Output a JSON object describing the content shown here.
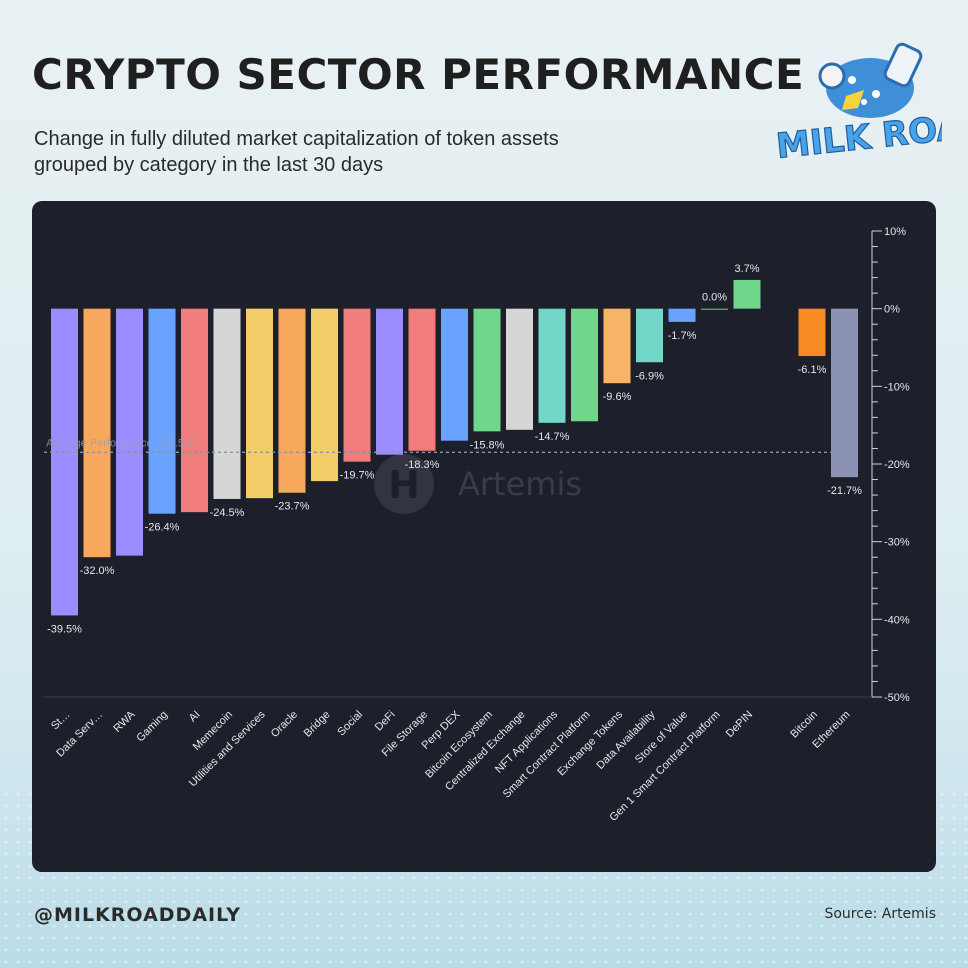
{
  "header": {
    "title": "CRYPTO SECTOR PERFORMANCE",
    "subtitle_line1": "Change in fully diluted market capitalization of token assets",
    "subtitle_line2": "grouped by category in the last 30 days"
  },
  "logo": {
    "text": "MILK ROAD",
    "icon": "milk-road-logo"
  },
  "footer": {
    "handle": "@MILKROADDAILY",
    "source": "Source: Artemis"
  },
  "watermark": {
    "text": "Artemis"
  },
  "chart_data": {
    "type": "bar",
    "title": "CRYPTO SECTOR PERFORMANCE",
    "categories": [
      "St…",
      "Data Serv…",
      "RWA",
      "Gaming",
      "AI",
      "Memecoin",
      "Utilities and Services",
      "Oracle",
      "Bridge",
      "Social",
      "DeFi",
      "File Storage",
      "Perp DEX",
      "Bitcoin Ecosystem",
      "Centralized Exchange",
      "NFT Applications",
      "Smart Contract Platform",
      "Exchange Tokens",
      "Data Availability",
      "Store of Value",
      "Gen 1 Smart Contract Platform",
      "DePIN",
      "Bitcoin",
      "Ethereum"
    ],
    "values": [
      -39.5,
      -32.0,
      -31.8,
      -26.4,
      -26.2,
      -24.5,
      -24.4,
      -23.7,
      -22.2,
      -19.7,
      -18.8,
      -18.3,
      -17.0,
      -15.8,
      -15.6,
      -14.7,
      -14.5,
      -9.6,
      -6.9,
      -1.7,
      0.0,
      3.7,
      -6.1,
      -21.7
    ],
    "labels": [
      "-39.5%",
      "-32.0%",
      "",
      "-26.4%",
      "",
      "-24.5%",
      "",
      "-23.7%",
      "",
      "-19.7%",
      "",
      "-18.3%",
      "",
      "-15.8%",
      "",
      "-14.7%",
      "",
      "-9.6%",
      "-6.9%",
      "-1.7%",
      "0.0%",
      "3.7%",
      "-6.1%",
      "-21.7%"
    ],
    "colors": [
      "#9b8cff",
      "#f7a85c",
      "#9b8cff",
      "#6aa2ff",
      "#f07d7b",
      "#d6d6d6",
      "#f2cc66",
      "#f7a85c",
      "#f2cc66",
      "#f07d7b",
      "#9b8cff",
      "#f07d7b",
      "#6aa2ff",
      "#6fd68c",
      "#d6d6d6",
      "#72d6c8",
      "#6fd68c",
      "#f7b466",
      "#72d6c8",
      "#6aa2ff",
      "#6fd68c",
      "#6fd68c",
      "#f78a22",
      "#8b92b3"
    ],
    "ylim": [
      -50,
      10
    ],
    "yticks": [
      10,
      0,
      -10,
      -20,
      -30,
      -40,
      -50
    ],
    "ytick_labels": [
      "10%",
      "0%",
      "-10%",
      "-20%",
      "-30%",
      "-40%",
      "-50%"
    ],
    "average": {
      "value": -18.5,
      "label": "Average Performance: -18.5%"
    },
    "grid": false,
    "legend": "none"
  }
}
